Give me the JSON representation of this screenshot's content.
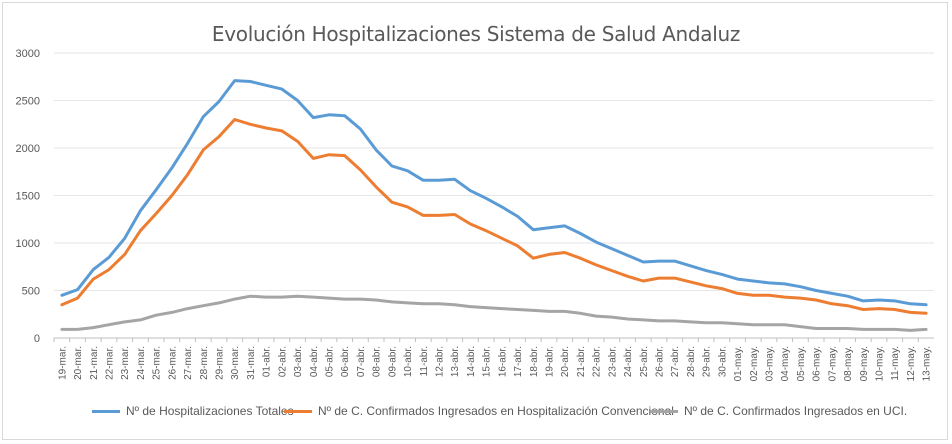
{
  "chart_data": {
    "type": "line",
    "title": "Evolución Hospitalizaciones Sistema de Salud Andaluz",
    "xlabel": "",
    "ylabel": "",
    "ylim": [
      0,
      3000
    ],
    "yticks": [
      "0",
      "500",
      "1000",
      "1500",
      "2000",
      "2500",
      "3000"
    ],
    "grid": "horizontal",
    "legend_position": "bottom",
    "categories": [
      "19-mar.",
      "20-mar.",
      "21-mar.",
      "22-mar.",
      "23-mar.",
      "24-mar.",
      "25-mar.",
      "26-mar.",
      "27-mar.",
      "28-mar.",
      "29-mar.",
      "30-mar.",
      "31-mar.",
      "01-abr.",
      "02-abr.",
      "03-abr.",
      "04-abr.",
      "05-abr.",
      "06-abr.",
      "07-abr.",
      "08-abr.",
      "09-abr.",
      "10-abr.",
      "11-abr.",
      "12-abr.",
      "13-abr.",
      "14-abr.",
      "15-abr.",
      "16-abr.",
      "17-abr.",
      "18-abr.",
      "19-abr.",
      "20-abr.",
      "21-abr.",
      "22-abr.",
      "23-abr.",
      "24-abr.",
      "25-abr.",
      "26-abr.",
      "27-abr.",
      "28-abr.",
      "29-abr.",
      "30-abr.",
      "01-may.",
      "02-may.",
      "03-may.",
      "04-may.",
      "05-may.",
      "06-may.",
      "07-may.",
      "08-may.",
      "09-may.",
      "10-may.",
      "11-may.",
      "12-may.",
      "13-may."
    ],
    "series": [
      {
        "name": "Nº de Hospitalizaciones Totales",
        "color": "#5b9bd5",
        "values": [
          450,
          510,
          720,
          850,
          1050,
          1340,
          1560,
          1790,
          2050,
          2330,
          2490,
          2710,
          2700,
          2660,
          2620,
          2500,
          2320,
          2350,
          2340,
          2200,
          1980,
          1810,
          1760,
          1660,
          1660,
          1670,
          1550,
          1470,
          1380,
          1280,
          1140,
          1160,
          1180,
          1100,
          1010,
          940,
          870,
          800,
          810,
          810,
          760,
          710,
          670,
          620,
          600,
          580,
          570,
          540,
          500,
          470,
          440,
          390,
          400,
          390,
          360,
          350
        ]
      },
      {
        "name": "Nº de C. Confirmados Ingresados en Hospitalización Convencional",
        "color": "#ed7d31",
        "values": [
          350,
          420,
          620,
          720,
          880,
          1130,
          1310,
          1500,
          1720,
          1980,
          2120,
          2300,
          2250,
          2210,
          2180,
          2070,
          1890,
          1930,
          1920,
          1770,
          1590,
          1430,
          1380,
          1290,
          1290,
          1300,
          1200,
          1130,
          1050,
          970,
          840,
          880,
          900,
          840,
          770,
          710,
          650,
          600,
          630,
          630,
          590,
          550,
          520,
          470,
          450,
          450,
          430,
          420,
          400,
          360,
          340,
          300,
          310,
          300,
          270,
          260
        ]
      },
      {
        "name": "Nº de C. Confirmados Ingresados en UCI.",
        "color": "#a5a5a5",
        "values": [
          90,
          90,
          110,
          140,
          170,
          190,
          240,
          270,
          310,
          340,
          370,
          410,
          440,
          430,
          430,
          440,
          430,
          420,
          410,
          410,
          400,
          380,
          370,
          360,
          360,
          350,
          330,
          320,
          310,
          300,
          290,
          280,
          280,
          260,
          230,
          220,
          200,
          190,
          180,
          180,
          170,
          160,
          160,
          150,
          140,
          140,
          140,
          120,
          100,
          100,
          100,
          90,
          90,
          90,
          80,
          90
        ]
      }
    ]
  }
}
